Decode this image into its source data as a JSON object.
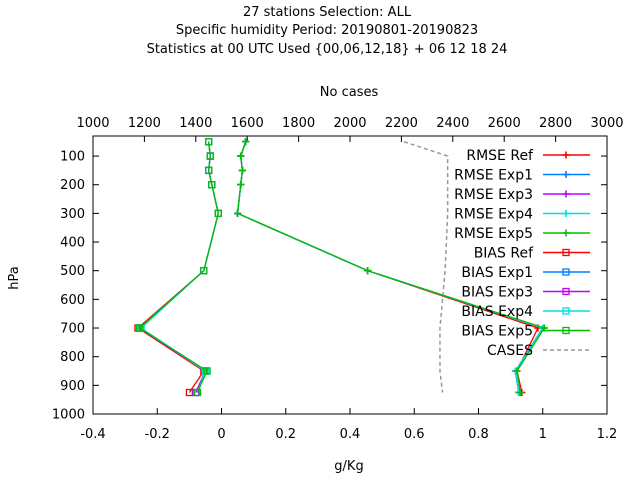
{
  "chart_data": {
    "type": "line",
    "title": [
      "27 stations Selection: ALL",
      "Specific humidity  Period: 20190801-20190823",
      "Statistics at 00 UTC  Used {00,06,12,18} + 06 12 18 24"
    ],
    "x2label": "No cases",
    "xlabel": "g/Kg",
    "ylabel": "hPa",
    "xlim": [
      -0.4,
      1.2
    ],
    "x2lim": [
      1000,
      3000
    ],
    "ylim": [
      1000,
      30
    ],
    "xticks": [
      -0.4,
      -0.2,
      0,
      0.2,
      0.4,
      0.6,
      0.8,
      1,
      1.2
    ],
    "xtick_labels": [
      "-0.4",
      "-0.2",
      "0",
      "0.2",
      "0.4",
      "0.6",
      "0.8",
      "1",
      "1.2"
    ],
    "x2ticks": [
      1000,
      1200,
      1400,
      1600,
      1800,
      2000,
      2200,
      2400,
      2600,
      2800,
      3000
    ],
    "x2tick_labels": [
      "1000",
      "1200",
      "1400",
      "1600",
      "1800",
      "2000",
      "2200",
      "2400",
      "2600",
      "2800",
      "3000"
    ],
    "yticks": [
      100,
      200,
      300,
      400,
      500,
      600,
      700,
      800,
      900,
      1000
    ],
    "ytick_labels": [
      "100",
      "200",
      "300",
      "400",
      "500",
      "600",
      "700",
      "800",
      "900",
      "1000"
    ],
    "grid": false,
    "legend_position": "right",
    "levels": [
      50,
      100,
      150,
      200,
      300,
      500,
      700,
      850,
      925
    ],
    "series": [
      {
        "name": "RMSE Ref",
        "color": "#ff0000",
        "marker": "plus",
        "values": [
          0.075,
          0.06,
          0.065,
          0.06,
          0.05,
          0.455,
          0.985,
          0.92,
          0.935
        ]
      },
      {
        "name": "RMSE Exp1",
        "color": "#0080ff",
        "marker": "plus",
        "values": [
          0.075,
          0.06,
          0.065,
          0.06,
          0.05,
          0.455,
          1.0,
          0.915,
          0.925
        ]
      },
      {
        "name": "RMSE Exp3",
        "color": "#c000ff",
        "marker": "plus",
        "values": [
          0.075,
          0.06,
          0.065,
          0.06,
          0.05,
          0.455,
          1.0,
          0.915,
          0.925
        ]
      },
      {
        "name": "RMSE Exp4",
        "color": "#00e0e0",
        "marker": "plus",
        "values": [
          0.075,
          0.06,
          0.065,
          0.06,
          0.05,
          0.455,
          1.0,
          0.915,
          0.925
        ]
      },
      {
        "name": "RMSE Exp5",
        "color": "#00c000",
        "marker": "plus",
        "values": [
          0.075,
          0.06,
          0.065,
          0.06,
          0.05,
          0.455,
          1.005,
          0.92,
          0.93
        ]
      },
      {
        "name": "BIAS Ref",
        "color": "#ff0000",
        "marker": "square",
        "values": [
          -0.04,
          -0.035,
          -0.04,
          -0.03,
          -0.01,
          -0.055,
          -0.26,
          -0.055,
          -0.1
        ]
      },
      {
        "name": "BIAS Exp1",
        "color": "#0080ff",
        "marker": "square",
        "values": [
          -0.04,
          -0.035,
          -0.04,
          -0.03,
          -0.01,
          -0.055,
          -0.255,
          -0.05,
          -0.08
        ]
      },
      {
        "name": "BIAS Exp3",
        "color": "#c000ff",
        "marker": "square",
        "values": [
          -0.04,
          -0.035,
          -0.04,
          -0.03,
          -0.01,
          -0.055,
          -0.255,
          -0.05,
          -0.08
        ]
      },
      {
        "name": "BIAS Exp4",
        "color": "#00e0e0",
        "marker": "square",
        "values": [
          -0.04,
          -0.035,
          -0.04,
          -0.03,
          -0.01,
          -0.055,
          -0.25,
          -0.05,
          -0.075
        ]
      },
      {
        "name": "BIAS Exp5",
        "color": "#00c000",
        "marker": "square",
        "values": [
          -0.04,
          -0.035,
          -0.04,
          -0.03,
          -0.01,
          -0.055,
          -0.255,
          -0.045,
          -0.075
        ]
      }
    ],
    "cases": {
      "name": "CASES",
      "color": "#999999",
      "axis": "x2",
      "levels": [
        50,
        100,
        150,
        200,
        300,
        500,
        700,
        850,
        925
      ],
      "values": [
        2210,
        2380,
        2380,
        2380,
        2380,
        2370,
        2350,
        2350,
        2360
      ]
    }
  }
}
